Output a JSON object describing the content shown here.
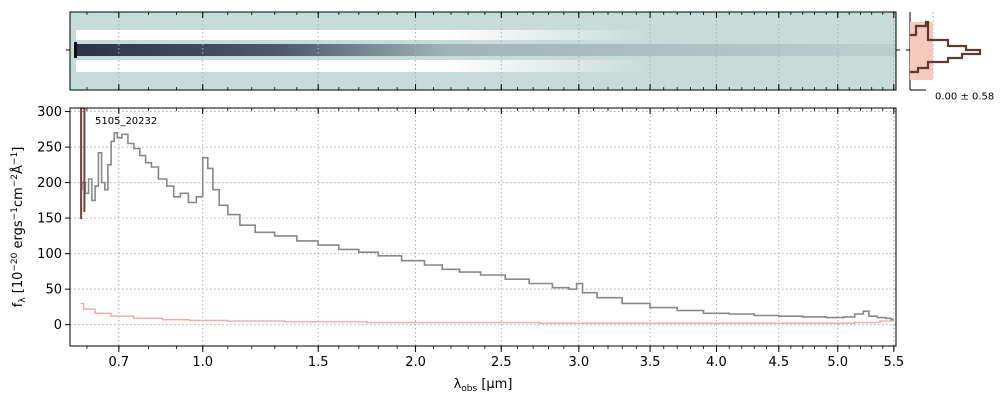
{
  "chart_data": [
    {
      "panel": "2d-spectrum",
      "type": "heatmap",
      "colormap": "bone_r",
      "trace_color": "#2a3344",
      "background_color": "#c6dcd9",
      "rows": [
        {
          "name": "sky-top",
          "level": 0.15
        },
        {
          "name": "white-band-top",
          "level": 0.0
        },
        {
          "name": "trace",
          "level": 0.95
        },
        {
          "name": "white-band-bottom",
          "level": 0.0
        },
        {
          "name": "sky-bottom",
          "level": 0.15
        }
      ]
    },
    {
      "panel": "profile",
      "type": "line",
      "annotation": "0.00 ± 0.58",
      "line_color": "#5c3a32",
      "fill_color": "#f6c9bd"
    },
    {
      "panel": "1d-spectrum",
      "type": "line",
      "label": "5105_20232",
      "xlabel": "λ_obs [μm]",
      "ylabel": "f_λ [10^-20 ergs^-1cm^-2Å^-1]",
      "xlim": [
        0.55,
        5.52
      ],
      "ylim": [
        -30,
        305
      ],
      "x_scale": "sqrt",
      "grid": true,
      "xticks": [
        0.7,
        1.0,
        1.5,
        2.0,
        2.5,
        3.0,
        3.5,
        4.0,
        4.5,
        5.0,
        5.5
      ],
      "xtick_labels": [
        "0.7",
        "1.0",
        "1.5",
        "2.0",
        "2.5",
        "3.0",
        "3.5",
        "4.0",
        "4.5",
        "5.0",
        "5.5"
      ],
      "yticks": [
        0,
        50,
        100,
        150,
        200,
        250,
        300
      ],
      "ytick_labels": [
        "0",
        "50",
        "100",
        "150",
        "200",
        "250",
        "300"
      ],
      "series": [
        {
          "role": "flux",
          "color": "#888888",
          "x": [
            0.58,
            0.59,
            0.6,
            0.61,
            0.62,
            0.63,
            0.64,
            0.65,
            0.66,
            0.67,
            0.68,
            0.69,
            0.7,
            0.72,
            0.74,
            0.76,
            0.78,
            0.8,
            0.82,
            0.85,
            0.88,
            0.9,
            0.93,
            0.96,
            0.99,
            1.01,
            1.03,
            1.05,
            1.08,
            1.12,
            1.18,
            1.25,
            1.35,
            1.45,
            1.55,
            1.65,
            1.75,
            1.85,
            2.0,
            2.1,
            2.2,
            2.3,
            2.45,
            2.6,
            2.75,
            2.9,
            2.97,
            3.0,
            3.05,
            3.2,
            3.4,
            3.6,
            3.8,
            4.0,
            4.2,
            4.4,
            4.6,
            4.8,
            5.0,
            5.1,
            5.2,
            5.25,
            5.3,
            5.4,
            5.45,
            5.5
          ],
          "y": [
            190,
            200,
            185,
            205,
            175,
            195,
            242,
            200,
            190,
            225,
            258,
            270,
            263,
            268,
            255,
            248,
            238,
            228,
            222,
            205,
            195,
            180,
            185,
            172,
            180,
            235,
            220,
            190,
            168,
            155,
            140,
            130,
            125,
            118,
            112,
            106,
            102,
            97,
            90,
            84,
            78,
            74,
            70,
            64,
            58,
            52,
            50,
            58,
            45,
            38,
            30,
            24,
            20,
            16,
            15,
            13,
            12,
            11,
            10,
            11,
            15,
            19,
            12,
            10,
            9,
            7
          ]
        },
        {
          "role": "error",
          "color": "#f4a9a8",
          "x": [
            0.58,
            0.6,
            0.65,
            0.7,
            0.8,
            0.9,
            1.0,
            1.2,
            1.5,
            2.0,
            2.5,
            3.0,
            3.5,
            4.0,
            4.5,
            5.0,
            5.3,
            5.45,
            5.5
          ],
          "y": [
            30,
            22,
            16,
            12,
            9,
            7,
            6,
            5,
            4,
            3,
            3,
            2,
            2,
            2,
            2,
            2,
            3,
            5,
            8
          ]
        },
        {
          "role": "edge-spike",
          "color": "#7a3c3c",
          "x": [
            0.58,
            0.585,
            0.59,
            0.595
          ],
          "y": [
            150,
            305,
            305,
            160
          ]
        }
      ]
    }
  ]
}
